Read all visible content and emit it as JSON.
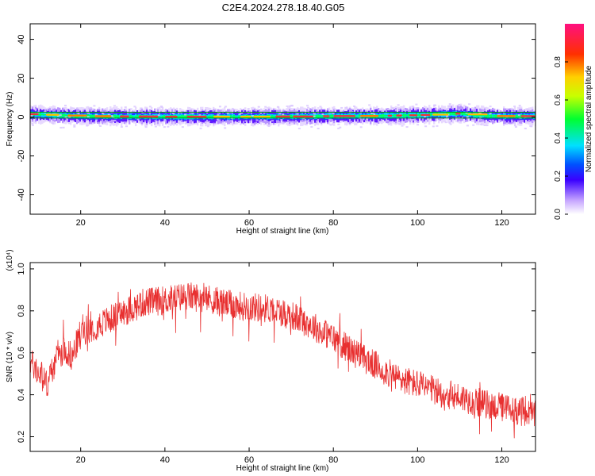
{
  "title": "C2E4.2024.278.18.40.G05",
  "chart_data": [
    {
      "type": "heatmap",
      "xlabel": "Height of straight line (km)",
      "ylabel": "Frequency (Hz)",
      "xlim": [
        8,
        128
      ],
      "ylim": [
        -50,
        48
      ],
      "xticks": [
        20,
        40,
        60,
        80,
        100,
        120
      ],
      "yticks": [
        -40,
        -20,
        0,
        20,
        40
      ],
      "colorbar": {
        "label": "Normalized spectral amplitude",
        "range": [
          0.0,
          1.0
        ],
        "ticks": [
          "0.0",
          "0.2",
          "0.4",
          "0.6",
          "0.8"
        ],
        "tick_values": [
          0.0,
          0.2,
          0.4,
          0.6,
          0.8
        ]
      },
      "box": {
        "fmin": -0.5,
        "fmax": 2.5,
        "color": "#00a000"
      },
      "ridge": {
        "x": [
          8,
          20,
          30,
          40,
          50,
          60,
          70,
          80,
          90,
          95,
          100,
          105,
          110,
          115,
          120,
          128
        ],
        "freq": [
          1.5,
          0.5,
          0.3,
          0.2,
          0.2,
          0.2,
          0.3,
          0.5,
          0.6,
          0.8,
          1.0,
          1.4,
          1.8,
          0.8,
          0.4,
          0.5
        ]
      }
    },
    {
      "type": "line",
      "xlabel": "Height of straight line (km)",
      "ylabel": "SNR (10 * v/v)",
      "scale_label": "(x10⁴)",
      "xlim": [
        8,
        128
      ],
      "ylim": [
        0.13,
        1.03
      ],
      "xticks": [
        20,
        40,
        60,
        80,
        100,
        120
      ],
      "yticks": [
        0.2,
        0.4,
        0.6,
        0.8,
        1.0
      ],
      "ytick_labels": [
        "0.2",
        "0.4",
        "0.6",
        "0.8",
        "1.0"
      ],
      "color": "#e83030",
      "trend": {
        "x": [
          8,
          10,
          12,
          14,
          16,
          18,
          20,
          25,
          30,
          35,
          40,
          45,
          50,
          55,
          60,
          65,
          70,
          75,
          80,
          85,
          90,
          95,
          100,
          105,
          110,
          115,
          120,
          125,
          128
        ],
        "y": [
          0.56,
          0.5,
          0.45,
          0.56,
          0.62,
          0.58,
          0.7,
          0.74,
          0.79,
          0.84,
          0.85,
          0.87,
          0.86,
          0.83,
          0.82,
          0.81,
          0.78,
          0.73,
          0.67,
          0.6,
          0.54,
          0.48,
          0.45,
          0.41,
          0.39,
          0.36,
          0.34,
          0.32,
          0.3
        ]
      },
      "noise_amplitude": 0.07
    }
  ]
}
